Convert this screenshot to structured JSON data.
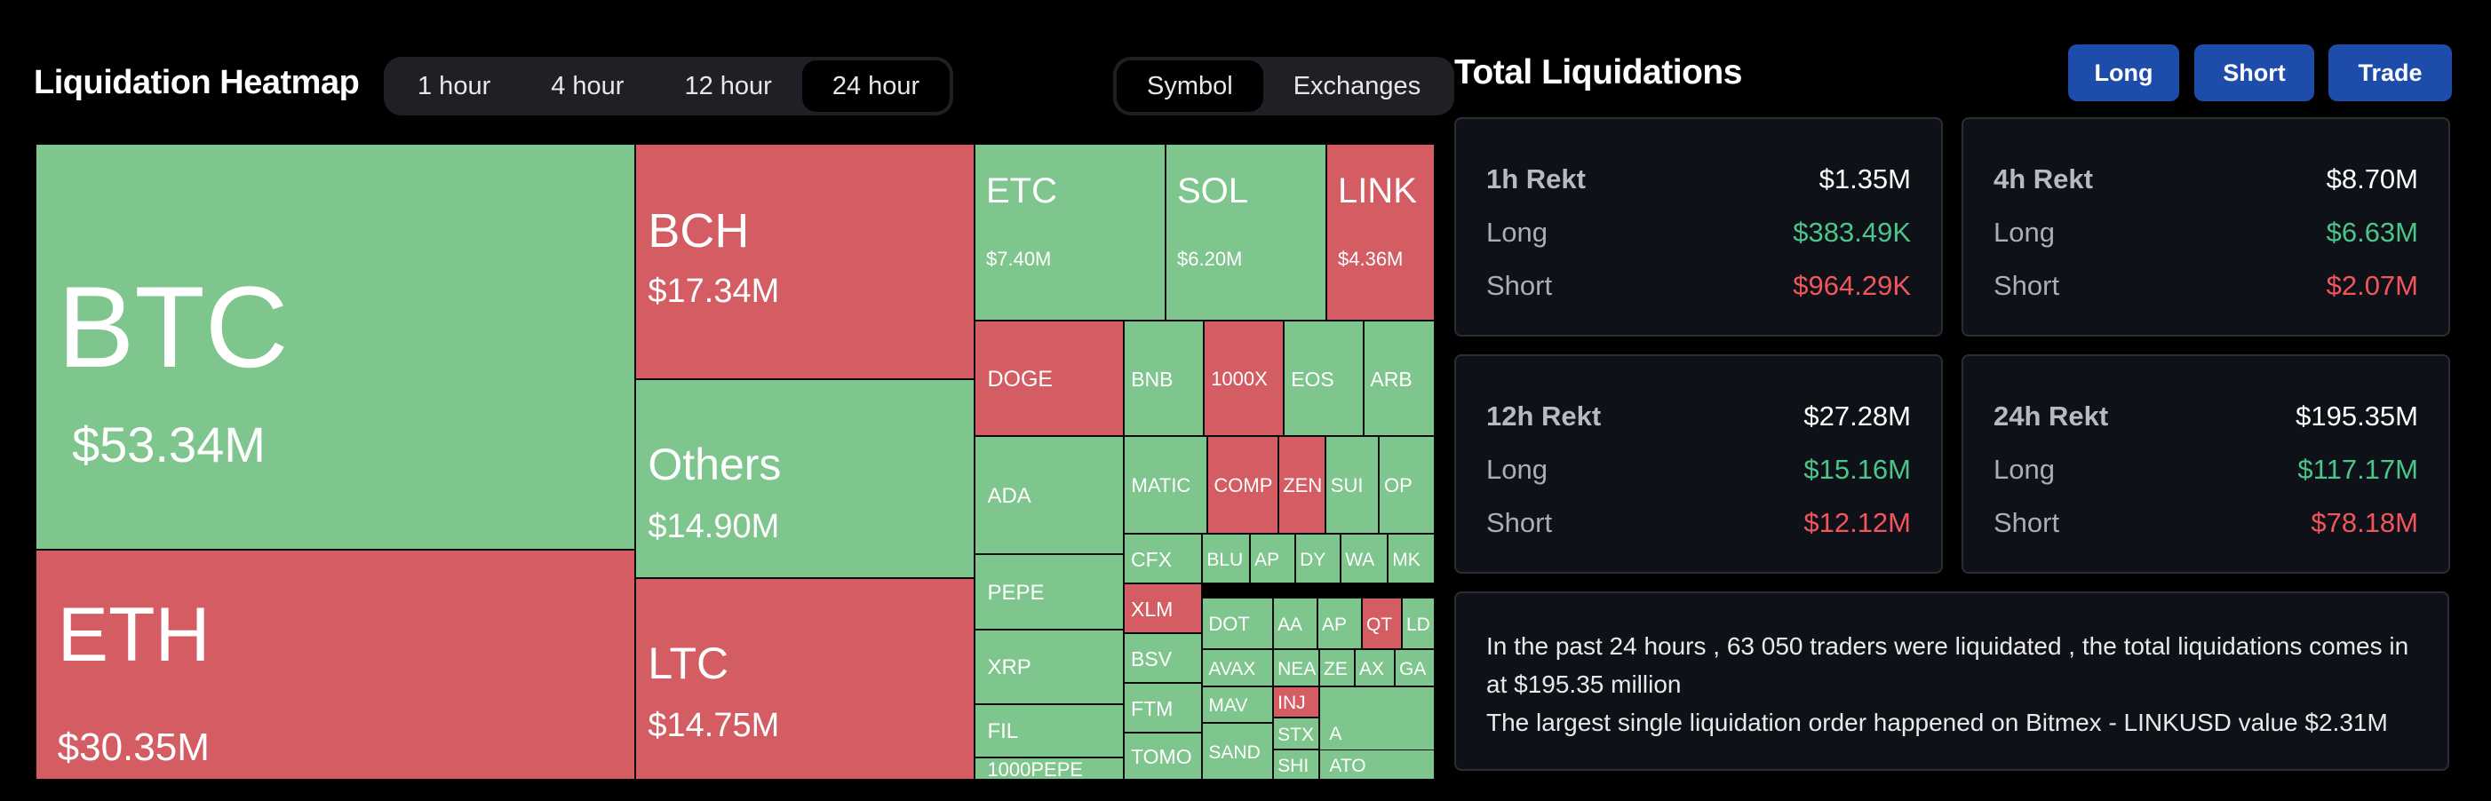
{
  "header": {
    "title": "Liquidation Heatmap"
  },
  "timeframes": [
    "1 hour",
    "4 hour",
    "12 hour",
    "24 hour"
  ],
  "active_timeframe": "24 hour",
  "views": [
    "Symbol",
    "Exchanges"
  ],
  "active_view": "Symbol",
  "colors": {
    "long": "#7ec58e",
    "short": "#d45c63",
    "button": "#1e4cab",
    "green_text": "#4cc58a",
    "red_text": "#f2555c"
  },
  "heatmap": [
    {
      "symbol": "BTC",
      "value": "$53.34M",
      "side": "long"
    },
    {
      "symbol": "ETH",
      "value": "$30.35M",
      "side": "short"
    },
    {
      "symbol": "BCH",
      "value": "$17.34M",
      "side": "short"
    },
    {
      "symbol": "Others",
      "value": "$14.90M",
      "side": "long"
    },
    {
      "symbol": "LTC",
      "value": "$14.75M",
      "side": "short"
    },
    {
      "symbol": "ETC",
      "value": "$7.40M",
      "side": "long"
    },
    {
      "symbol": "SOL",
      "value": "$6.20M",
      "side": "long"
    },
    {
      "symbol": "LINK",
      "value": "$4.36M",
      "side": "short"
    },
    {
      "symbol": "DOGE",
      "value": "",
      "side": "short"
    },
    {
      "symbol": "BNB",
      "value": "",
      "side": "long"
    },
    {
      "symbol": "1000X",
      "value": "",
      "side": "short"
    },
    {
      "symbol": "EOS",
      "value": "",
      "side": "long"
    },
    {
      "symbol": "ARB",
      "value": "",
      "side": "long"
    },
    {
      "symbol": "ADA",
      "value": "",
      "side": "long"
    },
    {
      "symbol": "MATIC",
      "value": "",
      "side": "long"
    },
    {
      "symbol": "COMP",
      "value": "",
      "side": "short"
    },
    {
      "symbol": "ZEN",
      "value": "",
      "side": "short"
    },
    {
      "symbol": "SUI",
      "value": "",
      "side": "long"
    },
    {
      "symbol": "OP",
      "value": "",
      "side": "long"
    },
    {
      "symbol": "PEPE",
      "value": "",
      "side": "long"
    },
    {
      "symbol": "CFX",
      "value": "",
      "side": "long"
    },
    {
      "symbol": "BLU",
      "value": "",
      "side": "long"
    },
    {
      "symbol": "AP",
      "value": "",
      "side": "long"
    },
    {
      "symbol": "DY",
      "value": "",
      "side": "long"
    },
    {
      "symbol": "WA",
      "value": "",
      "side": "long"
    },
    {
      "symbol": "MK",
      "value": "",
      "side": "long"
    },
    {
      "symbol": "XRP",
      "value": "",
      "side": "long"
    },
    {
      "symbol": "XLM",
      "value": "",
      "side": "short"
    },
    {
      "symbol": "DOT",
      "value": "",
      "side": "long"
    },
    {
      "symbol": "AA",
      "value": "",
      "side": "long"
    },
    {
      "symbol": "AP",
      "value": "",
      "side": "long"
    },
    {
      "symbol": "QT",
      "value": "",
      "side": "short"
    },
    {
      "symbol": "LD",
      "value": "",
      "side": "long"
    },
    {
      "symbol": "BSV",
      "value": "",
      "side": "long"
    },
    {
      "symbol": "AVAX",
      "value": "",
      "side": "long"
    },
    {
      "symbol": "NEA",
      "value": "",
      "side": "long"
    },
    {
      "symbol": "ZE",
      "value": "",
      "side": "long"
    },
    {
      "symbol": "AX",
      "value": "",
      "side": "long"
    },
    {
      "symbol": "GA",
      "value": "",
      "side": "long"
    },
    {
      "symbol": "FIL",
      "value": "",
      "side": "long"
    },
    {
      "symbol": "FTM",
      "value": "",
      "side": "long"
    },
    {
      "symbol": "MAV",
      "value": "",
      "side": "long"
    },
    {
      "symbol": "INJ",
      "value": "",
      "side": "short"
    },
    {
      "symbol": "STX",
      "value": "",
      "side": "long"
    },
    {
      "symbol": "A",
      "value": "",
      "side": "long"
    },
    {
      "symbol": "1000PEPE",
      "value": "",
      "side": "long"
    },
    {
      "symbol": "TOMO",
      "value": "",
      "side": "long"
    },
    {
      "symbol": "SAND",
      "value": "",
      "side": "long"
    },
    {
      "symbol": "SHI",
      "value": "",
      "side": "long"
    },
    {
      "symbol": "ATO",
      "value": "",
      "side": "long"
    }
  ],
  "panel": {
    "title": "Total Liquidations",
    "buttons": [
      "Long",
      "Short",
      "Trade"
    ]
  },
  "stats": [
    {
      "period": "1h Rekt",
      "total": "$1.35M",
      "long_label": "Long",
      "long": "$383.49K",
      "short_label": "Short",
      "short": "$964.29K"
    },
    {
      "period": "4h Rekt",
      "total": "$8.70M",
      "long_label": "Long",
      "long": "$6.63M",
      "short_label": "Short",
      "short": "$2.07M"
    },
    {
      "period": "12h Rekt",
      "total": "$27.28M",
      "long_label": "Long",
      "long": "$15.16M",
      "short_label": "Short",
      "short": "$12.12M"
    },
    {
      "period": "24h Rekt",
      "total": "$195.35M",
      "long_label": "Long",
      "long": "$117.17M",
      "short_label": "Short",
      "short": "$78.18M"
    }
  ],
  "summary": {
    "line1": "In the past 24 hours , 63 050 traders were liquidated , the total liquidations comes in at $195.35 million",
    "line2": "The largest single liquidation order happened on Bitmex - LINKUSD value $2.31M"
  }
}
